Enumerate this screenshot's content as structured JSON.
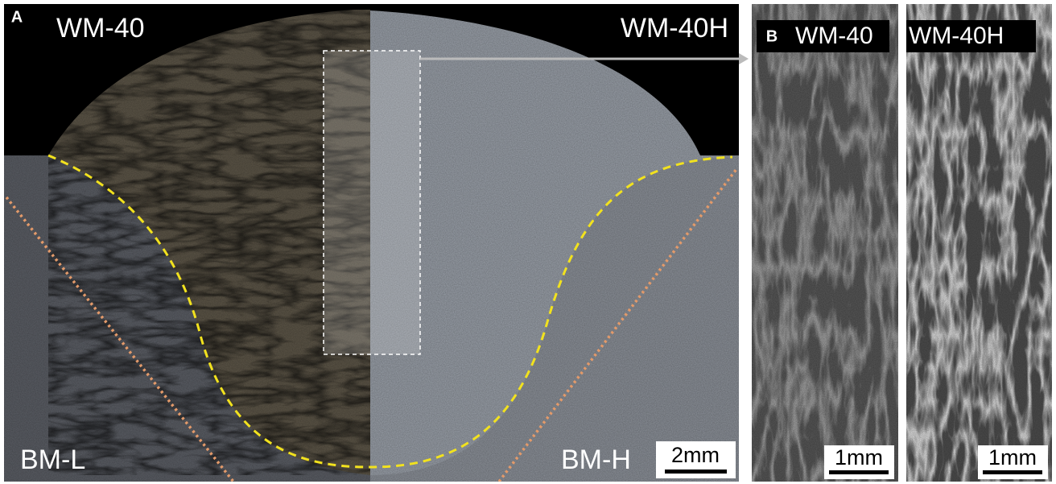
{
  "panel_a": {
    "label": "A",
    "titles": {
      "left": "WM-40",
      "right": "WM-40H"
    },
    "regions": {
      "left": "BM-L",
      "right": "BM-H"
    },
    "scale_bar": "2mm"
  },
  "panel_b": {
    "label": "B",
    "images": [
      {
        "title": "WM-40",
        "scale_bar": "1mm"
      },
      {
        "title": "WM-40H",
        "scale_bar": "1mm"
      }
    ]
  }
}
